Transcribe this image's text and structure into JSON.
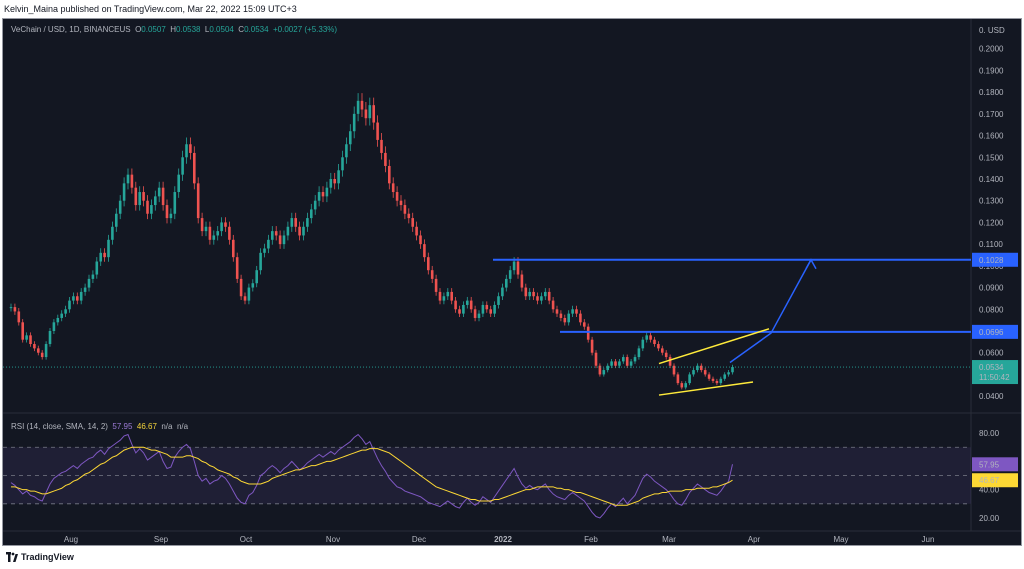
{
  "header": {
    "publisher_line": "Kelvin_Maina published on TradingView.com, Mar 22, 2022 15:09 UTC+3"
  },
  "legend": {
    "symbol": "VeChain / USD, 1D, BINANCEUS",
    "o_label": "O",
    "o_value": "0.0507",
    "h_label": "H",
    "h_value": "0.0538",
    "l_label": "L",
    "l_value": "0.0504",
    "c_label": "C",
    "c_value": "0.0534",
    "change": "+0.0027 (+5.33%)"
  },
  "rsi_legend": {
    "label": "RSI (14, close, SMA, 14, 2)",
    "rsi_value": "57.95",
    "sma_value": "46.67",
    "na1": "n/a",
    "na2": "n/a"
  },
  "footer": {
    "brand": "TradingView"
  },
  "colors": {
    "up": "#26a69a",
    "down": "#ef5350",
    "horizontal_lines": "#2962ff",
    "wedge": "#ffeb3b",
    "rsi": "#7e57c2",
    "rsi_sma": "#fdd835",
    "background": "#131722"
  },
  "chart_data": [
    {
      "type": "candlestick",
      "title": "VeChain / USD, 1D, BINANCEUS",
      "x_ticks": [
        "Aug",
        "Sep",
        "Oct",
        "Nov",
        "Dec",
        "2022",
        "Feb",
        "Mar",
        "Apr",
        "May",
        "Jun"
      ],
      "y_ticks": [
        "0.0400",
        "0.0500",
        "0.0600",
        "0.0700",
        "0.0800",
        "0.0900",
        "0.1000",
        "0.1100",
        "0.1200",
        "0.1300",
        "0.1400",
        "0.1500",
        "0.1600",
        "0.1700",
        "0.1800",
        "0.1900",
        "0.2000"
      ],
      "y_unit": "USD",
      "ylim": [
        0.035,
        0.21
      ],
      "last_price": "0.0534",
      "countdown": "11:50:42",
      "horizontal_lines": [
        {
          "value": 0.1028,
          "label": "0.1028"
        },
        {
          "value": 0.0696,
          "label": "0.0696"
        }
      ],
      "wedge": {
        "upper": [
          [
            "Feb 24",
            0.055
          ],
          [
            "Apr 1",
            0.071
          ]
        ],
        "lower": [
          [
            "Feb 24",
            0.0405
          ],
          [
            "Mar 31",
            0.0465
          ]
        ]
      },
      "projection": [
        [
          "Mar 25",
          0.0555
        ],
        [
          "Apr 6",
          0.069
        ],
        [
          "Apr 22",
          0.1028
        ]
      ],
      "closes": [
        0.081,
        0.079,
        0.074,
        0.066,
        0.068,
        0.064,
        0.062,
        0.06,
        0.058,
        0.064,
        0.07,
        0.074,
        0.076,
        0.078,
        0.08,
        0.084,
        0.086,
        0.084,
        0.088,
        0.09,
        0.094,
        0.096,
        0.102,
        0.106,
        0.104,
        0.112,
        0.118,
        0.124,
        0.13,
        0.138,
        0.142,
        0.136,
        0.128,
        0.134,
        0.13,
        0.124,
        0.128,
        0.132,
        0.136,
        0.128,
        0.122,
        0.124,
        0.134,
        0.142,
        0.15,
        0.156,
        0.152,
        0.138,
        0.122,
        0.116,
        0.118,
        0.112,
        0.114,
        0.116,
        0.12,
        0.118,
        0.112,
        0.104,
        0.094,
        0.086,
        0.084,
        0.09,
        0.092,
        0.098,
        0.106,
        0.108,
        0.112,
        0.116,
        0.114,
        0.11,
        0.114,
        0.118,
        0.122,
        0.118,
        0.114,
        0.118,
        0.122,
        0.126,
        0.13,
        0.134,
        0.132,
        0.136,
        0.14,
        0.138,
        0.144,
        0.15,
        0.156,
        0.162,
        0.17,
        0.176,
        0.172,
        0.168,
        0.174,
        0.166,
        0.158,
        0.152,
        0.146,
        0.138,
        0.134,
        0.13,
        0.128,
        0.124,
        0.122,
        0.118,
        0.114,
        0.11,
        0.104,
        0.098,
        0.094,
        0.088,
        0.084,
        0.086,
        0.088,
        0.084,
        0.08,
        0.078,
        0.082,
        0.084,
        0.08,
        0.076,
        0.078,
        0.082,
        0.08,
        0.078,
        0.082,
        0.086,
        0.09,
        0.094,
        0.098,
        0.102,
        0.096,
        0.09,
        0.086,
        0.088,
        0.086,
        0.084,
        0.086,
        0.088,
        0.084,
        0.08,
        0.078,
        0.076,
        0.074,
        0.078,
        0.08,
        0.078,
        0.074,
        0.072,
        0.066,
        0.06,
        0.054,
        0.05,
        0.052,
        0.054,
        0.056,
        0.054,
        0.056,
        0.058,
        0.054,
        0.056,
        0.058,
        0.062,
        0.066,
        0.068,
        0.066,
        0.064,
        0.062,
        0.06,
        0.058,
        0.054,
        0.05,
        0.046,
        0.044,
        0.046,
        0.05,
        0.052,
        0.054,
        0.052,
        0.05,
        0.048,
        0.047,
        0.046,
        0.048,
        0.05,
        0.051,
        0.0534
      ]
    },
    {
      "type": "line",
      "title": "RSI (14, close, SMA, 14, 2)",
      "y_ticks": [
        "20.00",
        "40.00",
        "80.00"
      ],
      "ylim": [
        15,
        90
      ],
      "bands": [
        30,
        50,
        70
      ],
      "series": [
        {
          "name": "RSI",
          "last": "57.95",
          "values": [
            45,
            43,
            40,
            37,
            39,
            36,
            35,
            33,
            32,
            38,
            44,
            48,
            50,
            52,
            53,
            55,
            57,
            55,
            58,
            60,
            62,
            63,
            66,
            68,
            65,
            69,
            71,
            73,
            75,
            78,
            79,
            72,
            66,
            69,
            66,
            61,
            63,
            65,
            67,
            60,
            55,
            56,
            63,
            67,
            70,
            72,
            69,
            60,
            50,
            46,
            48,
            44,
            46,
            47,
            50,
            48,
            44,
            39,
            34,
            31,
            30,
            36,
            38,
            43,
            50,
            52,
            55,
            57,
            55,
            52,
            55,
            57,
            60,
            57,
            54,
            56,
            59,
            61,
            63,
            65,
            63,
            65,
            67,
            65,
            68,
            70,
            72,
            74,
            77,
            79,
            76,
            72,
            74,
            68,
            62,
            57,
            53,
            48,
            45,
            42,
            41,
            39,
            38,
            37,
            36,
            35,
            33,
            31,
            30,
            29,
            28,
            30,
            32,
            30,
            28,
            27,
            31,
            34,
            31,
            29,
            31,
            35,
            33,
            31,
            35,
            39,
            43,
            47,
            51,
            55,
            49,
            44,
            41,
            43,
            41,
            40,
            42,
            44,
            40,
            37,
            35,
            34,
            33,
            36,
            38,
            36,
            34,
            32,
            28,
            24,
            21,
            20,
            23,
            27,
            30,
            28,
            31,
            34,
            30,
            33,
            36,
            42,
            48,
            51,
            49,
            46,
            44,
            42,
            40,
            37,
            33,
            30,
            29,
            33,
            38,
            41,
            44,
            42,
            40,
            38,
            37,
            36,
            39,
            43,
            46,
            57.95
          ]
        },
        {
          "name": "SMA",
          "last": "46.67",
          "values": [
            42,
            42,
            41,
            40,
            40,
            39,
            39,
            38,
            37,
            37,
            38,
            39,
            40,
            41,
            43,
            44,
            46,
            47,
            49,
            51,
            52,
            54,
            56,
            58,
            59,
            61,
            63,
            64,
            66,
            68,
            69,
            70,
            70,
            70,
            70,
            69,
            68,
            68,
            67,
            66,
            65,
            63,
            63,
            63,
            63,
            64,
            64,
            63,
            62,
            60,
            59,
            57,
            56,
            54,
            53,
            52,
            51,
            49,
            48,
            46,
            45,
            44,
            44,
            44,
            44,
            45,
            46,
            48,
            49,
            50,
            51,
            52,
            53,
            54,
            54,
            55,
            56,
            57,
            57,
            58,
            59,
            60,
            60,
            61,
            62,
            63,
            64,
            65,
            66,
            67,
            68,
            68,
            69,
            69,
            69,
            68,
            67,
            66,
            64,
            62,
            60,
            58,
            56,
            54,
            52,
            50,
            48,
            46,
            44,
            42,
            41,
            40,
            39,
            38,
            37,
            36,
            35,
            34,
            33,
            33,
            32,
            32,
            32,
            32,
            33,
            33,
            34,
            35,
            36,
            37,
            38,
            39,
            40,
            40,
            41,
            42,
            42,
            42,
            42,
            42,
            41,
            41,
            40,
            40,
            39,
            38,
            38,
            37,
            36,
            35,
            34,
            33,
            32,
            31,
            30,
            29,
            29,
            29,
            29,
            30,
            31,
            32,
            34,
            35,
            36,
            37,
            37,
            38,
            38,
            39,
            39,
            39,
            39,
            40,
            40,
            40,
            41,
            41,
            41,
            41,
            42,
            42,
            43,
            44,
            45,
            46.67
          ]
        }
      ]
    }
  ]
}
